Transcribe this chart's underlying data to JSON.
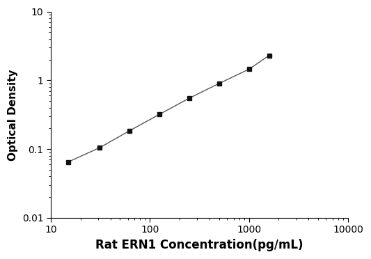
{
  "x_values": [
    15,
    31.25,
    62.5,
    125,
    250,
    500,
    1000,
    1600
  ],
  "y_values": [
    0.065,
    0.105,
    0.185,
    0.32,
    0.55,
    0.9,
    1.45,
    2.3
  ],
  "xlabel": "Rat ERN1 Concentration(pg/mL)",
  "ylabel": "Optical Density",
  "xlim_min": 10,
  "xlim_max": 10000,
  "ylim_min": 0.01,
  "ylim_max": 10,
  "line_color": "#555555",
  "marker": "s",
  "marker_color": "#111111",
  "marker_size": 5,
  "linewidth": 1.0,
  "background_color": "#ffffff",
  "xlabel_fontsize": 12,
  "ylabel_fontsize": 11,
  "tick_fontsize": 10
}
